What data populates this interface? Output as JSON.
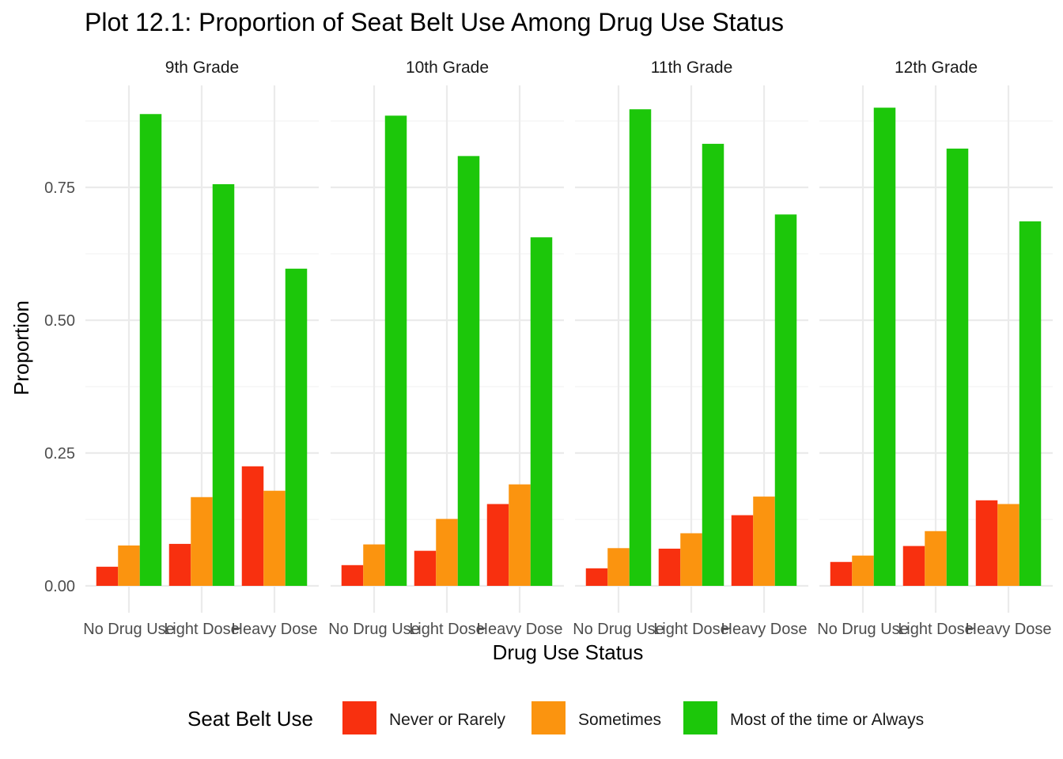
{
  "chart_data": {
    "type": "bar",
    "title": "Plot 12.1: Proportion of Seat Belt Use Among Drug Use Status",
    "xlabel": "Drug Use Status",
    "ylabel": "Proportion",
    "ylim": [
      0,
      0.93
    ],
    "yticks": [
      "0.00",
      "0.25",
      "0.50",
      "0.75"
    ],
    "categories": [
      "No Drug Use",
      "Light Dose",
      "Heavy Dose"
    ],
    "legend": {
      "title": "Seat Belt Use",
      "position": "bottom"
    },
    "grid": true,
    "series": [
      {
        "name": "Never or Rarely",
        "color": "#f8300f"
      },
      {
        "name": "Sometimes",
        "color": "#fb940f"
      },
      {
        "name": "Most of the time or Always",
        "color": "#1cc70a"
      }
    ],
    "panels": [
      {
        "label": "9th Grade",
        "values": [
          [
            0.036,
            0.076,
            0.888
          ],
          [
            0.079,
            0.167,
            0.756
          ],
          [
            0.225,
            0.179,
            0.597
          ]
        ]
      },
      {
        "label": "10th Grade",
        "values": [
          [
            0.039,
            0.078,
            0.885
          ],
          [
            0.066,
            0.126,
            0.809
          ],
          [
            0.154,
            0.191,
            0.656
          ]
        ]
      },
      {
        "label": "11th Grade",
        "values": [
          [
            0.033,
            0.071,
            0.897
          ],
          [
            0.07,
            0.099,
            0.832
          ],
          [
            0.133,
            0.168,
            0.699
          ]
        ]
      },
      {
        "label": "12th Grade",
        "values": [
          [
            0.045,
            0.057,
            0.9
          ],
          [
            0.075,
            0.103,
            0.823
          ],
          [
            0.161,
            0.154,
            0.686
          ]
        ]
      }
    ]
  }
}
